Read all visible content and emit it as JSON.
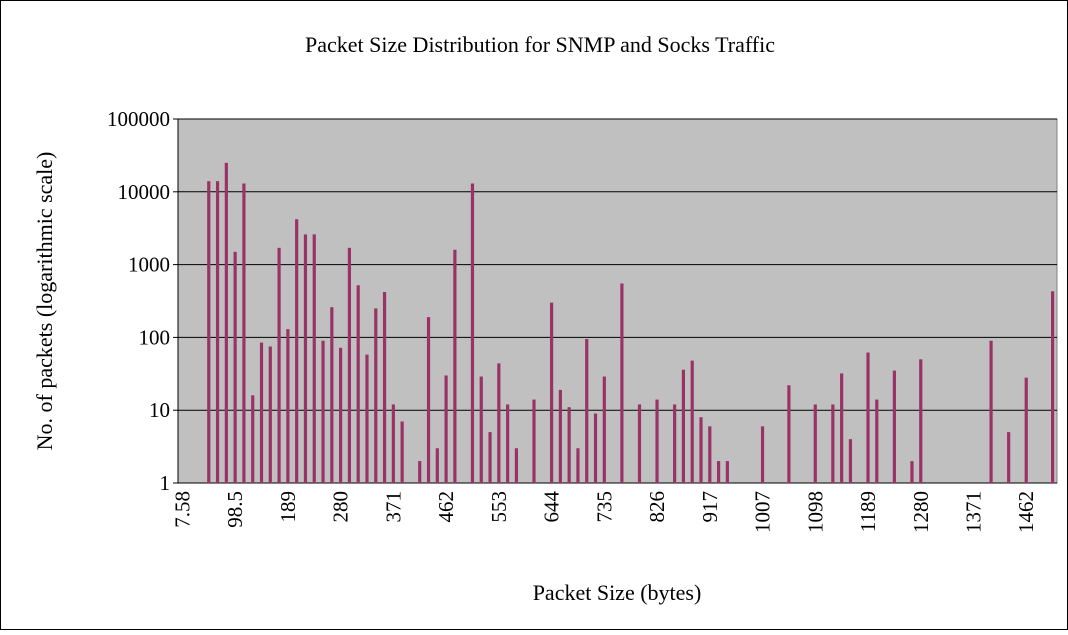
{
  "chart_data": {
    "type": "bar",
    "title": "Packet Size Distribution for SNMP and Socks Traffic",
    "x_label": "Packet Size (bytes)",
    "y_label": "No. of packets (logarithmic scale)",
    "categories": [
      "7.58",
      null,
      null,
      null,
      null,
      null,
      "98.5",
      null,
      null,
      null,
      null,
      null,
      "189",
      null,
      null,
      null,
      null,
      null,
      "280",
      null,
      null,
      null,
      null,
      null,
      "371",
      null,
      null,
      null,
      null,
      null,
      "462",
      null,
      null,
      null,
      null,
      null,
      "553",
      null,
      null,
      null,
      null,
      null,
      "644",
      null,
      null,
      null,
      null,
      null,
      "735",
      null,
      null,
      null,
      null,
      null,
      "826",
      null,
      null,
      null,
      null,
      null,
      "917",
      null,
      null,
      null,
      null,
      null,
      "1007",
      null,
      null,
      null,
      null,
      null,
      "1098",
      null,
      null,
      null,
      null,
      null,
      "1189",
      null,
      null,
      null,
      null,
      null,
      "1280",
      null,
      null,
      null,
      null,
      null,
      "1371",
      null,
      null,
      null,
      null,
      null,
      "1462",
      null,
      null,
      null
    ],
    "values": [
      null,
      null,
      null,
      14000,
      14000,
      25000,
      1500,
      13000,
      16,
      85,
      75,
      1700,
      130,
      4200,
      2600,
      2600,
      90,
      260,
      72,
      1700,
      520,
      58,
      250,
      420,
      12,
      7,
      null,
      2,
      190,
      3,
      30,
      1600,
      null,
      13000,
      29,
      5,
      44,
      12,
      3,
      null,
      14,
      null,
      300,
      19,
      11,
      3,
      95,
      9,
      29,
      null,
      550,
      null,
      12,
      null,
      14,
      null,
      12,
      36,
      48,
      8,
      6,
      2,
      2,
      null,
      null,
      null,
      6,
      null,
      null,
      22,
      null,
      null,
      12,
      null,
      12,
      32,
      4,
      null,
      62,
      14,
      null,
      35,
      null,
      2,
      50,
      null,
      null,
      null,
      null,
      null,
      null,
      null,
      90,
      null,
      5,
      null,
      28,
      null,
      null,
      430
    ],
    "color": "#993366",
    "ylim": [
      1,
      100000
    ],
    "yticks": [
      1,
      10,
      100,
      1000,
      10000,
      100000
    ],
    "log_y": true,
    "grid": true
  }
}
